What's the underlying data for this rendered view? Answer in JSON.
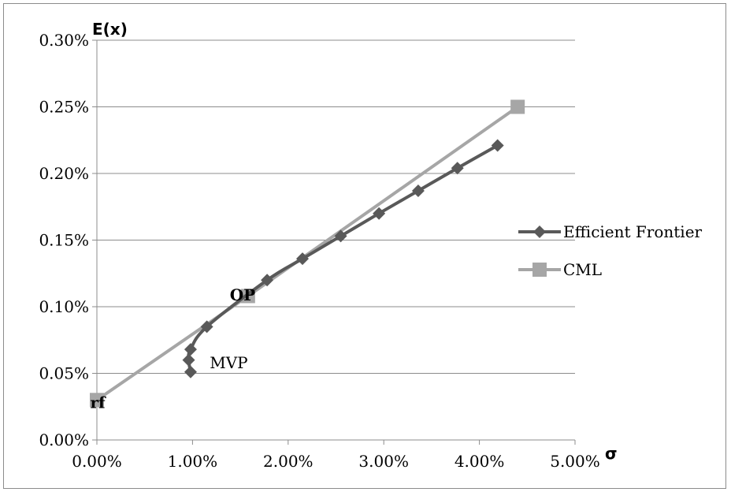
{
  "chart_data": {
    "type": "scatter",
    "xlabel": "σ",
    "ylabel": "E(x)",
    "xlim": [
      0,
      0.05
    ],
    "ylim": [
      0,
      0.003
    ],
    "x_ticks": [
      "0.00%",
      "1.00%",
      "2.00%",
      "3.00%",
      "4.00%",
      "5.00%"
    ],
    "y_ticks": [
      "0.00%",
      "0.05%",
      "0.10%",
      "0.15%",
      "0.20%",
      "0.25%",
      "0.30%"
    ],
    "grid": "horizontal",
    "legend_position": "right",
    "series": [
      {
        "name": "Efficient Frontier",
        "color": "#595959",
        "marker": "diamond",
        "x": [
          0.0098,
          0.0096,
          0.0098,
          0.0115,
          0.0178,
          0.0215,
          0.0255,
          0.0295,
          0.0336,
          0.0377,
          0.0419
        ],
        "y": [
          0.00051,
          0.0006,
          0.00068,
          0.00085,
          0.0012,
          0.00136,
          0.00153,
          0.0017,
          0.00187,
          0.00204,
          0.00221
        ]
      },
      {
        "name": "CML",
        "color": "#a6a6a6",
        "marker": "square",
        "x": [
          0.0,
          0.0158,
          0.044
        ],
        "y": [
          0.0003,
          0.00108,
          0.0025
        ]
      }
    ],
    "annotations": [
      {
        "text": "MVP",
        "x": 0.0118,
        "y": 0.00058,
        "bold": false
      },
      {
        "text": "OP",
        "x": 0.0139,
        "y": 0.00109,
        "bold": true
      },
      {
        "text": "rf",
        "x": -0.0007,
        "y": 0.00028,
        "bold": true
      }
    ]
  }
}
